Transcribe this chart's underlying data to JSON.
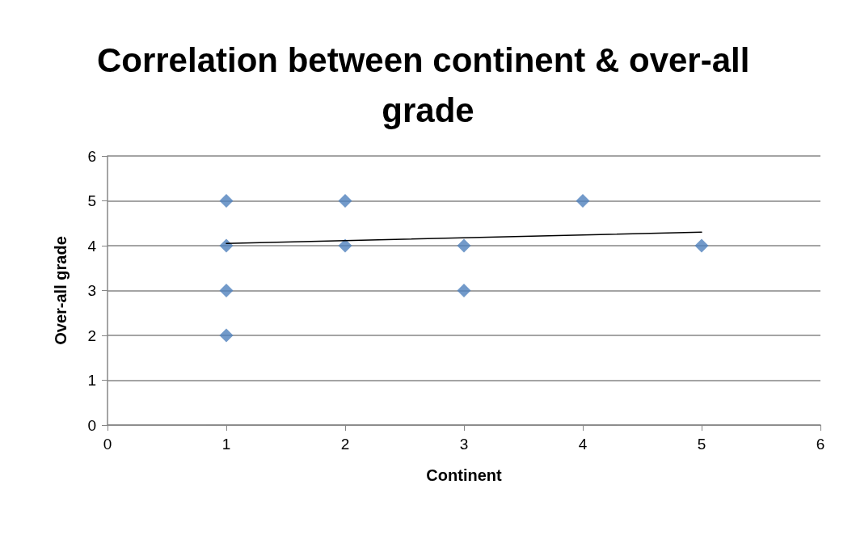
{
  "chart_data": {
    "type": "scatter",
    "title": "Correlation between continent & over-all grade",
    "xlabel": "Continent",
    "ylabel": "Over-all grade",
    "series": [
      {
        "color": "#4f81bd",
        "marker": "diamond",
        "x": [
          1,
          1,
          1,
          1,
          2,
          2,
          3,
          3,
          4,
          5
        ],
        "values": [
          5,
          4,
          3,
          2,
          5,
          4,
          4,
          3,
          5,
          4
        ]
      },
      {
        "type": "line",
        "color": "#000000",
        "marker": "none",
        "line_style": "solid",
        "x": [
          1,
          5
        ],
        "values": [
          4.05,
          4.3
        ]
      }
    ],
    "xlim": [
      0,
      6
    ],
    "xticks": [
      0,
      1,
      2,
      3,
      4,
      5,
      6
    ],
    "ylim": [
      0,
      6
    ],
    "yticks": [
      0,
      1,
      2,
      3,
      4,
      5,
      6
    ],
    "grid": "y"
  }
}
